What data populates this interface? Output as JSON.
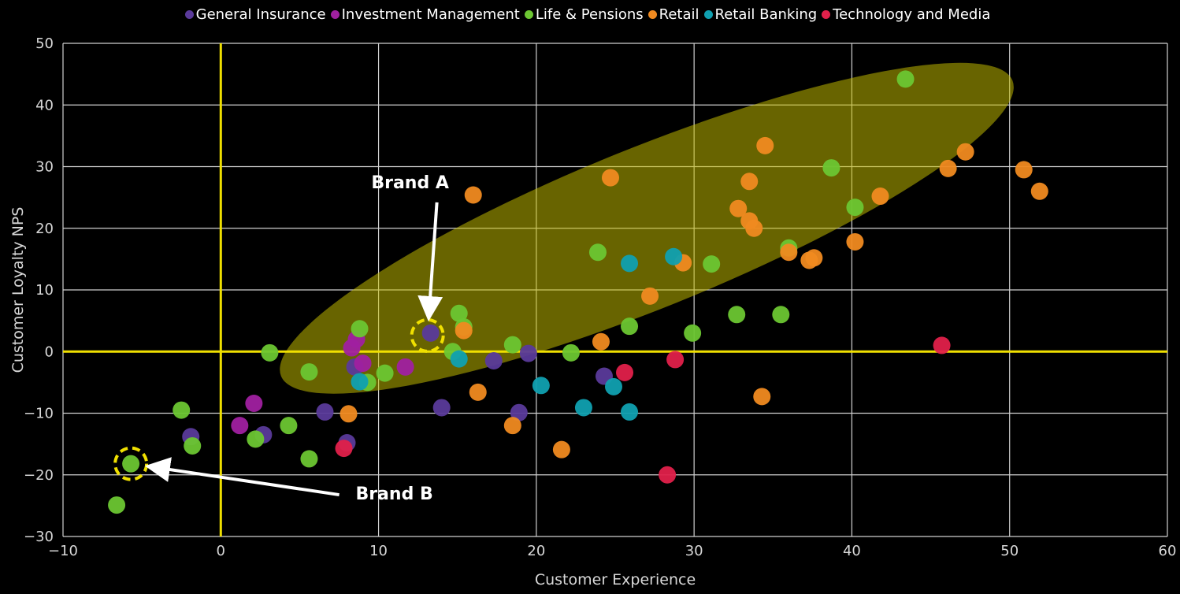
{
  "chart_data": {
    "type": "scatter",
    "xlabel": "Customer Experience",
    "ylabel": "Customer Loyalty NPS",
    "xlim": [
      -10,
      60
    ],
    "ylim": [
      -30,
      50
    ],
    "xticks": [
      -10,
      0,
      10,
      20,
      30,
      40,
      50,
      60
    ],
    "yticks": [
      -30,
      -20,
      -10,
      0,
      10,
      20,
      30,
      40,
      50
    ],
    "grid": true,
    "legend_position": "top",
    "reference_lines": {
      "x": 0,
      "y": 0,
      "color": "#f0e000"
    },
    "highlight_ellipse": {
      "cx": 27,
      "cy": 20,
      "rx": 25,
      "ry": 13,
      "angle_deg": 22,
      "color": "#c8c000"
    },
    "series": [
      {
        "name": "General Insurance",
        "color": "#5a3a9a",
        "points": [
          [
            -1.9,
            -13.8
          ],
          [
            2.7,
            -13.5
          ],
          [
            6.6,
            -9.8
          ],
          [
            8.0,
            -14.8
          ],
          [
            8.5,
            -2.5
          ],
          [
            14.0,
            -9.1
          ],
          [
            17.3,
            -1.5
          ],
          [
            18.9,
            -9.9
          ],
          [
            19.5,
            -0.3
          ],
          [
            24.3,
            -4.0
          ],
          [
            13.3,
            3.0
          ]
        ]
      },
      {
        "name": "Investment Management",
        "color": "#a020a0",
        "points": [
          [
            1.2,
            -12.0
          ],
          [
            2.1,
            -8.4
          ],
          [
            8.3,
            0.6
          ],
          [
            8.6,
            2.0
          ],
          [
            9.0,
            -1.9
          ],
          [
            11.7,
            -2.5
          ]
        ]
      },
      {
        "name": "Life & Pensions",
        "color": "#6cc632",
        "points": [
          [
            -6.6,
            -24.9
          ],
          [
            -5.7,
            -18.2
          ],
          [
            -2.5,
            -9.5
          ],
          [
            -1.8,
            -15.3
          ],
          [
            2.2,
            -14.2
          ],
          [
            3.1,
            -0.2
          ],
          [
            4.3,
            -12.0
          ],
          [
            5.6,
            -3.3
          ],
          [
            5.6,
            -17.4
          ],
          [
            8.8,
            3.7
          ],
          [
            9.3,
            -5.0
          ],
          [
            10.4,
            -3.5
          ],
          [
            14.7,
            0.0
          ],
          [
            15.1,
            6.2
          ],
          [
            15.4,
            4.0
          ],
          [
            18.5,
            1.1
          ],
          [
            22.2,
            -0.2
          ],
          [
            23.9,
            16.1
          ],
          [
            25.9,
            4.1
          ],
          [
            29.9,
            3.0
          ],
          [
            31.1,
            14.2
          ],
          [
            32.7,
            6.0
          ],
          [
            35.5,
            6.0
          ],
          [
            36.0,
            16.8
          ],
          [
            38.7,
            29.8
          ],
          [
            40.2,
            23.4
          ],
          [
            43.4,
            44.2
          ]
        ]
      },
      {
        "name": "Retail",
        "color": "#f08a20",
        "points": [
          [
            8.1,
            -10.1
          ],
          [
            15.4,
            3.4
          ],
          [
            16.3,
            -6.6
          ],
          [
            16.0,
            25.4
          ],
          [
            18.5,
            -12.0
          ],
          [
            21.6,
            -15.9
          ],
          [
            24.1,
            1.6
          ],
          [
            24.7,
            28.2
          ],
          [
            27.2,
            9.0
          ],
          [
            29.3,
            14.4
          ],
          [
            32.8,
            23.2
          ],
          [
            33.5,
            21.2
          ],
          [
            33.5,
            27.6
          ],
          [
            33.8,
            20.0
          ],
          [
            34.5,
            33.4
          ],
          [
            34.3,
            -7.3
          ],
          [
            36.0,
            16.1
          ],
          [
            37.3,
            14.8
          ],
          [
            37.6,
            15.2
          ],
          [
            40.2,
            17.8
          ],
          [
            41.8,
            25.2
          ],
          [
            46.1,
            29.7
          ],
          [
            47.2,
            32.4
          ],
          [
            50.9,
            29.5
          ],
          [
            51.9,
            26.0
          ]
        ]
      },
      {
        "name": "Retail Banking",
        "color": "#10a0b0",
        "points": [
          [
            8.8,
            -4.9
          ],
          [
            15.1,
            -1.2
          ],
          [
            20.3,
            -5.5
          ],
          [
            23.0,
            -9.1
          ],
          [
            24.9,
            -5.7
          ],
          [
            25.9,
            -9.8
          ],
          [
            25.9,
            14.3
          ],
          [
            28.7,
            15.4
          ]
        ]
      },
      {
        "name": "Technology and Media",
        "color": "#e0204a",
        "points": [
          [
            7.8,
            -15.7
          ],
          [
            25.6,
            -3.4
          ],
          [
            28.3,
            -20.0
          ],
          [
            28.8,
            -1.3
          ],
          [
            45.7,
            1.0
          ]
        ]
      }
    ],
    "annotations": [
      {
        "text": "Brand A",
        "point": [
          13.1,
          2.6
        ],
        "label_at": [
          12.0,
          26.5
        ]
      },
      {
        "text": "Brand B",
        "point": [
          -5.7,
          -18.2
        ],
        "label_at": [
          11.0,
          -24.0
        ]
      }
    ]
  }
}
